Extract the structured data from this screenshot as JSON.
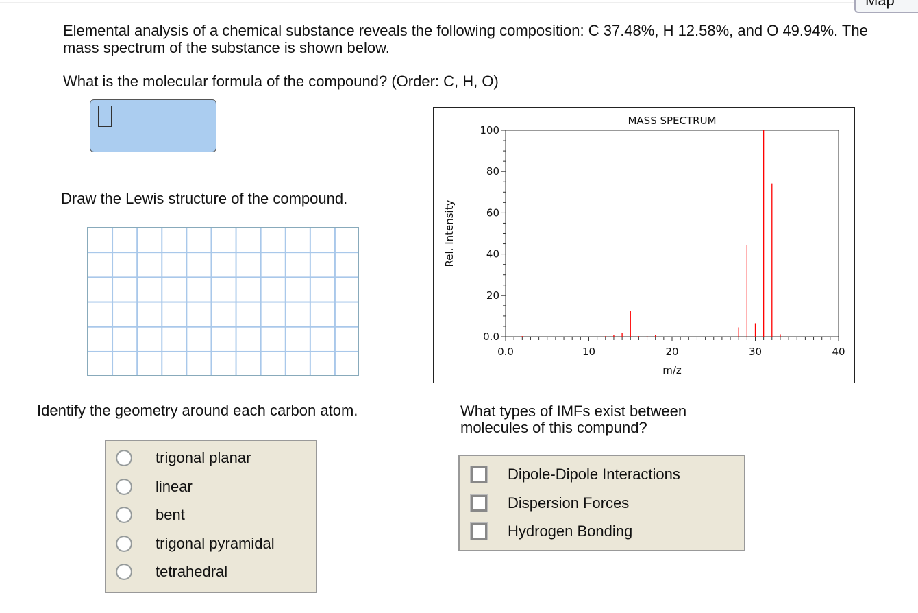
{
  "header": {
    "map_button": "Map"
  },
  "question": {
    "intro": "Elemental analysis of a chemical substance reveals the following composition: C 37.48%, H 12.58%, and O 49.94%. The mass spectrum of the substance is shown below.",
    "formula_prompt": "What is the molecular formula of the compound? (Order: C, H, O)",
    "formula_value": "",
    "lewis_prompt": "Draw the Lewis structure of the compound.",
    "geometry_prompt": "Identify the geometry around each carbon atom.",
    "geometry_options": [
      "trigonal planar",
      "linear",
      "bent",
      "trigonal pyramidal",
      "tetrahedral"
    ],
    "imf_prompt": "What types of IMFs exist between molecules of this compund?",
    "imf_options": [
      "Dipole-Dipole Interactions",
      "Dispersion Forces",
      "Hydrogen Bonding"
    ]
  },
  "colors": {
    "answer_box": "#abcdf0",
    "panel": "#ebe7d8",
    "peak": "#ff0000"
  },
  "chart_data": {
    "type": "bar",
    "title": "MASS SPECTRUM",
    "xlabel": "m/z",
    "ylabel": "Rel. Intensity",
    "xlim": [
      0,
      40
    ],
    "ylim": [
      0,
      100
    ],
    "xticks": [
      "0.0",
      "10",
      "20",
      "30",
      "40"
    ],
    "yticks": [
      "0.0",
      "20",
      "40",
      "60",
      "80",
      "100"
    ],
    "x": [
      2,
      12,
      13,
      14,
      15,
      16,
      17,
      18,
      28,
      29,
      30,
      31,
      32,
      33
    ],
    "values": [
      0.3,
      0.3,
      0.7,
      1.8,
      12.3,
      0.3,
      0.3,
      0.8,
      4.5,
      44.5,
      6.5,
      100,
      74.2,
      1.2
    ]
  }
}
